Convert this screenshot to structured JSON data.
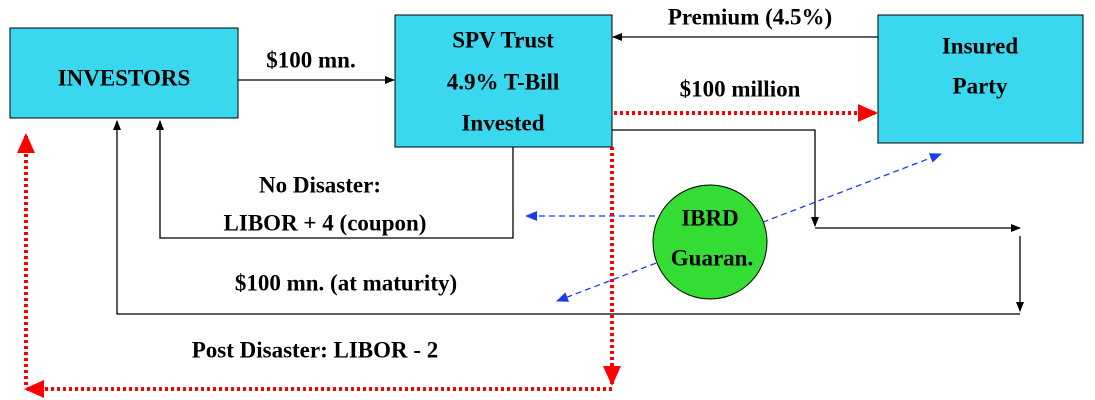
{
  "nodes": [
    {
      "label": [
        "INVESTORS"
      ]
    },
    {
      "label": [
        "SPV Trust",
        "4.9% T-Bill",
        "Invested"
      ]
    },
    {
      "label": [
        "Insured",
        "Party"
      ]
    },
    {
      "label": [
        "IBRD",
        "Guaran."
      ]
    }
  ],
  "edges": [
    {
      "label": "$100 mn."
    },
    {
      "label": "Premium (4.5%)"
    },
    {
      "label": "$100 million"
    },
    {
      "label": [
        "No Disaster:",
        "LIBOR + 4 (coupon)"
      ]
    },
    {
      "label": "$100 mn. (at maturity)"
    },
    {
      "label": "Post Disaster: LIBOR - 2"
    }
  ]
}
